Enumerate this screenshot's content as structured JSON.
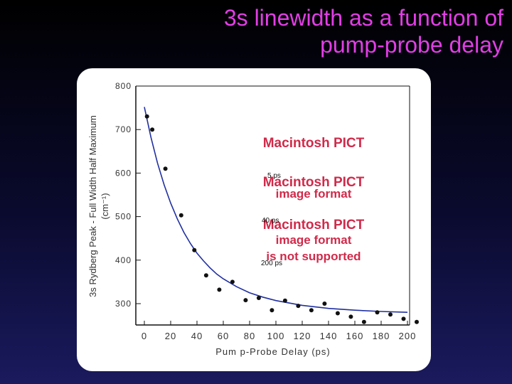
{
  "slide": {
    "title_line1": "3s linewidth as a function of",
    "title_line2": "pump-probe delay"
  },
  "chart_data": {
    "type": "scatter",
    "title": "",
    "xlabel": "Pum p-Probe Delay (ps)",
    "ylabel_line1": "3s Rydberg Peak - Full Width Half Maximum",
    "ylabel_line2": "(cm⁻¹)",
    "xlim": [
      -5,
      205
    ],
    "ylim": [
      270,
      800
    ],
    "xticks": [
      0,
      20,
      40,
      60,
      80,
      100,
      120,
      140,
      160,
      180,
      200
    ],
    "yticks": [
      300,
      400,
      500,
      600,
      700,
      800
    ],
    "series": [
      {
        "type": "scatter",
        "x": [
          2,
          6,
          16,
          28,
          38,
          47,
          57,
          67,
          77,
          87,
          97,
          107,
          117,
          127,
          137,
          147,
          157,
          167,
          177,
          187,
          197,
          207
        ],
        "y": [
          730,
          700,
          610,
          503,
          423,
          365,
          332,
          350,
          308,
          313,
          285,
          307,
          295,
          285,
          300,
          278,
          270,
          258,
          280,
          275,
          265,
          258
        ]
      },
      {
        "type": "line",
        "x": [
          0,
          5,
          10,
          15,
          20,
          25,
          30,
          35,
          40,
          45,
          50,
          55,
          60,
          70,
          80,
          90,
          100,
          120,
          140,
          160,
          180,
          200
        ],
        "y": [
          752,
          682,
          623,
          573,
          531,
          495,
          464,
          438,
          416,
          398,
          382,
          368,
          357,
          339,
          325,
          315,
          307,
          296,
          289,
          285,
          282,
          280
        ]
      }
    ],
    "annotations": [
      "5 ps",
      "40 ps",
      "200 ps"
    ],
    "placeholder_image": {
      "lines": [
        "Macintosh PICT",
        "image format",
        "is not supported"
      ]
    },
    "grid": false
  }
}
